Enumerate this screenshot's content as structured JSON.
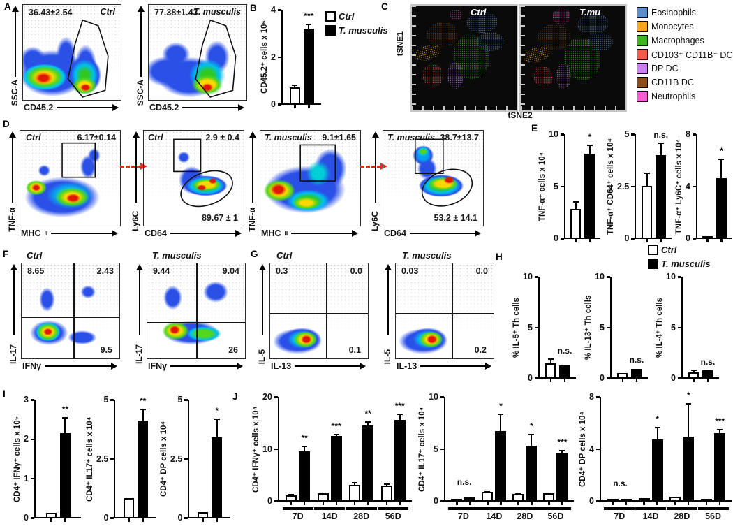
{
  "panelA": {
    "label": "A",
    "plots": [
      {
        "title": "Ctrl",
        "value": "36.43±2.54",
        "xlabel": "CD45.2",
        "ylabel": "SSC-A"
      },
      {
        "title": "T. musculis",
        "value": "77.38±1.43",
        "xlabel": "CD45.2",
        "ylabel": "SSC-A"
      }
    ]
  },
  "panelB": {
    "label": "B",
    "ylabel": "CD45.2⁺ cells x 10⁶",
    "yticks": [
      "4",
      "2",
      "0"
    ],
    "ymax": 4,
    "ctrl": {
      "v": 0.7,
      "err": 0.12
    },
    "tmu": {
      "v": 3.2,
      "err": 0.2
    },
    "sig": "***",
    "legend": {
      "ctrl": "Ctrl",
      "tmu": "T. musculis"
    }
  },
  "panelC": {
    "label": "C",
    "plots": [
      {
        "title": "Ctrl"
      },
      {
        "title": "T.mu"
      }
    ],
    "xlabel": "tSNE2",
    "ylabel": "tSNE1",
    "legend": [
      {
        "name": "Eosinophils",
        "color": "#5b8dc9"
      },
      {
        "name": "Monocytes",
        "color": "#f3a51d"
      },
      {
        "name": "Macrophages",
        "color": "#3eb51f"
      },
      {
        "name": "CD103⁺ CD11B⁻ DC",
        "color": "#f1594a"
      },
      {
        "name": "DP DC",
        "color": "#cb80f0"
      },
      {
        "name": "CD11B DC",
        "color": "#8a4d1a"
      },
      {
        "name": "Neutrophils",
        "color": "#f55ed2"
      }
    ]
  },
  "panelD": {
    "label": "D",
    "plots": [
      {
        "title": "Ctrl",
        "gate": "6.17±0.14",
        "xlabel": "MHC",
        "xsub": "II",
        "ylabel": "TNF-α"
      },
      {
        "title": "Ctrl",
        "gate": "2.9 ± 0.4",
        "gate2": "89.67 ± 1",
        "xlabel": "CD64",
        "ylabel": "Ly6C"
      },
      {
        "title": "T. musculis",
        "gate": "9.1±1.65",
        "xlabel": "MHC",
        "xsub": "II",
        "ylabel": "TNF-α"
      },
      {
        "title": "T. musculis",
        "gate": "38.7±13.7",
        "gate2": "53.2 ± 14.1",
        "xlabel": "CD64",
        "ylabel": "Ly6C"
      }
    ]
  },
  "panelE": {
    "label": "E",
    "charts": [
      {
        "ylabel": "TNF-α⁺ cells x 10⁴",
        "yticks": [
          "10",
          "5",
          "0"
        ],
        "ymax": 10,
        "ctrl": {
          "v": 2.8,
          "err": 0.7
        },
        "tmu": {
          "v": 8.1,
          "err": 0.9
        },
        "sig": "*"
      },
      {
        "ylabel": "TNF-α⁺ CD64⁺ cells x 10⁴",
        "yticks": [
          "5",
          "2.5",
          "0"
        ],
        "ymax": 5,
        "ctrl": {
          "v": 2.5,
          "err": 0.65
        },
        "tmu": {
          "v": 4.0,
          "err": 0.6
        },
        "sig": "n.s."
      },
      {
        "ylabel": "TNF-α⁺ Ly6C⁺ cells x 10⁴",
        "yticks": [
          "8",
          "4",
          "0"
        ],
        "ymax": 8,
        "ctrl": {
          "v": 0.12,
          "err": 0.05
        },
        "tmu": {
          "v": 4.6,
          "err": 1.5
        },
        "sig": "*"
      }
    ]
  },
  "panelF": {
    "label": "F",
    "plots": [
      {
        "title": "Ctrl",
        "ul": "8.65",
        "ur": "2.43",
        "lr": "9.5",
        "xlabel": "IFNγ",
        "ylabel": "IL-17"
      },
      {
        "title": "T. musculis",
        "ul": "9.44",
        "ur": "9.04",
        "lr": "26",
        "xlabel": "IFNγ",
        "ylabel": "IL-17"
      }
    ]
  },
  "panelG": {
    "label": "G",
    "plots": [
      {
        "title": "Ctrl",
        "ul": "0.3",
        "ur": "0.0",
        "lr": "0.1",
        "xlabel": "IL-13",
        "ylabel": "IL-5"
      },
      {
        "title": "T. musculis",
        "ul": "0.03",
        "ur": "0.0",
        "lr": "0.2",
        "xlabel": "IL-13",
        "ylabel": "IL-5"
      }
    ]
  },
  "panelH": {
    "label": "H",
    "legend": {
      "ctrl": "Ctrl",
      "tmu": "T. musculis"
    },
    "charts": [
      {
        "ylabel": "% IL-5⁺ Th cells",
        "yticks": [
          "10",
          "5",
          "0"
        ],
        "ymax": 10,
        "ctrl": {
          "v": 1.4,
          "err": 0.5
        },
        "tmu": {
          "v": 1.2,
          "err": 0.1
        },
        "sig": "n.s."
      },
      {
        "ylabel": "% IL-13⁺ Th cells",
        "yticks": [
          "10",
          "5",
          "0"
        ],
        "ymax": 10,
        "ctrl": {
          "v": 0.45,
          "err": 0.1
        },
        "tmu": {
          "v": 0.85,
          "err": 0.1
        },
        "sig": "n.s."
      },
      {
        "ylabel": "% IL-4⁺ Th cells",
        "yticks": [
          "10",
          "5",
          "0"
        ],
        "ymax": 10,
        "ctrl": {
          "v": 0.5,
          "err": 0.25
        },
        "tmu": {
          "v": 0.7,
          "err": 0.08
        },
        "sig": "n.s."
      }
    ]
  },
  "panelI": {
    "label": "I",
    "charts": [
      {
        "ylabel": "CD4⁺ IFNγ⁺ cells x 10⁵",
        "yticks": [
          "3",
          "2",
          "1",
          "0"
        ],
        "ymax": 3,
        "ctrl": {
          "v": 0.1,
          "err": 0.04
        },
        "tmu": {
          "v": 2.15,
          "err": 0.4
        },
        "sig": "**"
      },
      {
        "ylabel": "CD4⁺ IL17⁺ cells x 10⁴",
        "yticks": [
          "5",
          "2.5",
          "0"
        ],
        "ymax": 5,
        "ctrl": {
          "v": 0.8,
          "err": 0.06
        },
        "tmu": {
          "v": 4.1,
          "err": 0.5
        },
        "sig": "**"
      },
      {
        "ylabel": "CD4⁺ DP cells x 10⁴",
        "yticks": [
          "5",
          "2.5",
          "0"
        ],
        "ymax": 5,
        "ctrl": {
          "v": 0.2,
          "err": 0.05
        },
        "tmu": {
          "v": 3.4,
          "err": 0.8
        },
        "sig": "*"
      }
    ]
  },
  "panelJ": {
    "label": "J",
    "timepoints": [
      "7D",
      "14D",
      "28D",
      "56D"
    ],
    "charts": [
      {
        "ylabel": "CD4⁺ IFNγ⁺ cells x 10⁴",
        "yticks": [
          "20",
          "10",
          "0"
        ],
        "ymax": 20,
        "groups": [
          {
            "ctrl": {
              "v": 1.0,
              "err": 0.25
            },
            "tmu": {
              "v": 9.5,
              "err": 1.0
            },
            "sig": "**"
          },
          {
            "ctrl": {
              "v": 1.3,
              "err": 0.25
            },
            "tmu": {
              "v": 12.5,
              "err": 0.4
            },
            "sig": "***"
          },
          {
            "ctrl": {
              "v": 3.0,
              "err": 0.5
            },
            "tmu": {
              "v": 14.5,
              "err": 0.8
            },
            "sig": "**"
          },
          {
            "ctrl": {
              "v": 2.8,
              "err": 0.5
            },
            "tmu": {
              "v": 15.5,
              "err": 1.2
            },
            "sig": "***"
          }
        ]
      },
      {
        "ylabel": "CD4⁺ IL17⁺ cells x 10⁴",
        "yticks": [
          "10",
          "5",
          "0"
        ],
        "ymax": 10,
        "groups": [
          {
            "ctrl": {
              "v": 0.15,
              "err": 0.03
            },
            "tmu": {
              "v": 0.3,
              "err": 0.05
            },
            "sig": "n.s."
          },
          {
            "ctrl": {
              "v": 0.8,
              "err": 0.1
            },
            "tmu": {
              "v": 6.7,
              "err": 1.7
            },
            "sig": "*"
          },
          {
            "ctrl": {
              "v": 0.6,
              "err": 0.1
            },
            "tmu": {
              "v": 5.3,
              "err": 1.1
            },
            "sig": "*"
          },
          {
            "ctrl": {
              "v": 0.65,
              "err": 0.1
            },
            "tmu": {
              "v": 4.6,
              "err": 0.25
            },
            "sig": "***"
          }
        ]
      },
      {
        "ylabel": "CD4⁺ DP cells x 10⁴",
        "yticks": [
          "8",
          "4",
          "0"
        ],
        "ymax": 8,
        "groups": [
          {
            "ctrl": {
              "v": 0.07,
              "err": 0.02
            },
            "tmu": {
              "v": 0.12,
              "err": 0.03
            },
            "sig": "n.s."
          },
          {
            "ctrl": {
              "v": 0.15,
              "err": 0.03
            },
            "tmu": {
              "v": 4.7,
              "err": 1.0
            },
            "sig": "*"
          },
          {
            "ctrl": {
              "v": 0.25,
              "err": 0.05
            },
            "tmu": {
              "v": 4.9,
              "err": 2.6
            },
            "sig": "*"
          },
          {
            "ctrl": {
              "v": 0.12,
              "err": 0.03
            },
            "tmu": {
              "v": 5.2,
              "err": 0.3
            },
            "sig": "***"
          }
        ]
      }
    ]
  }
}
